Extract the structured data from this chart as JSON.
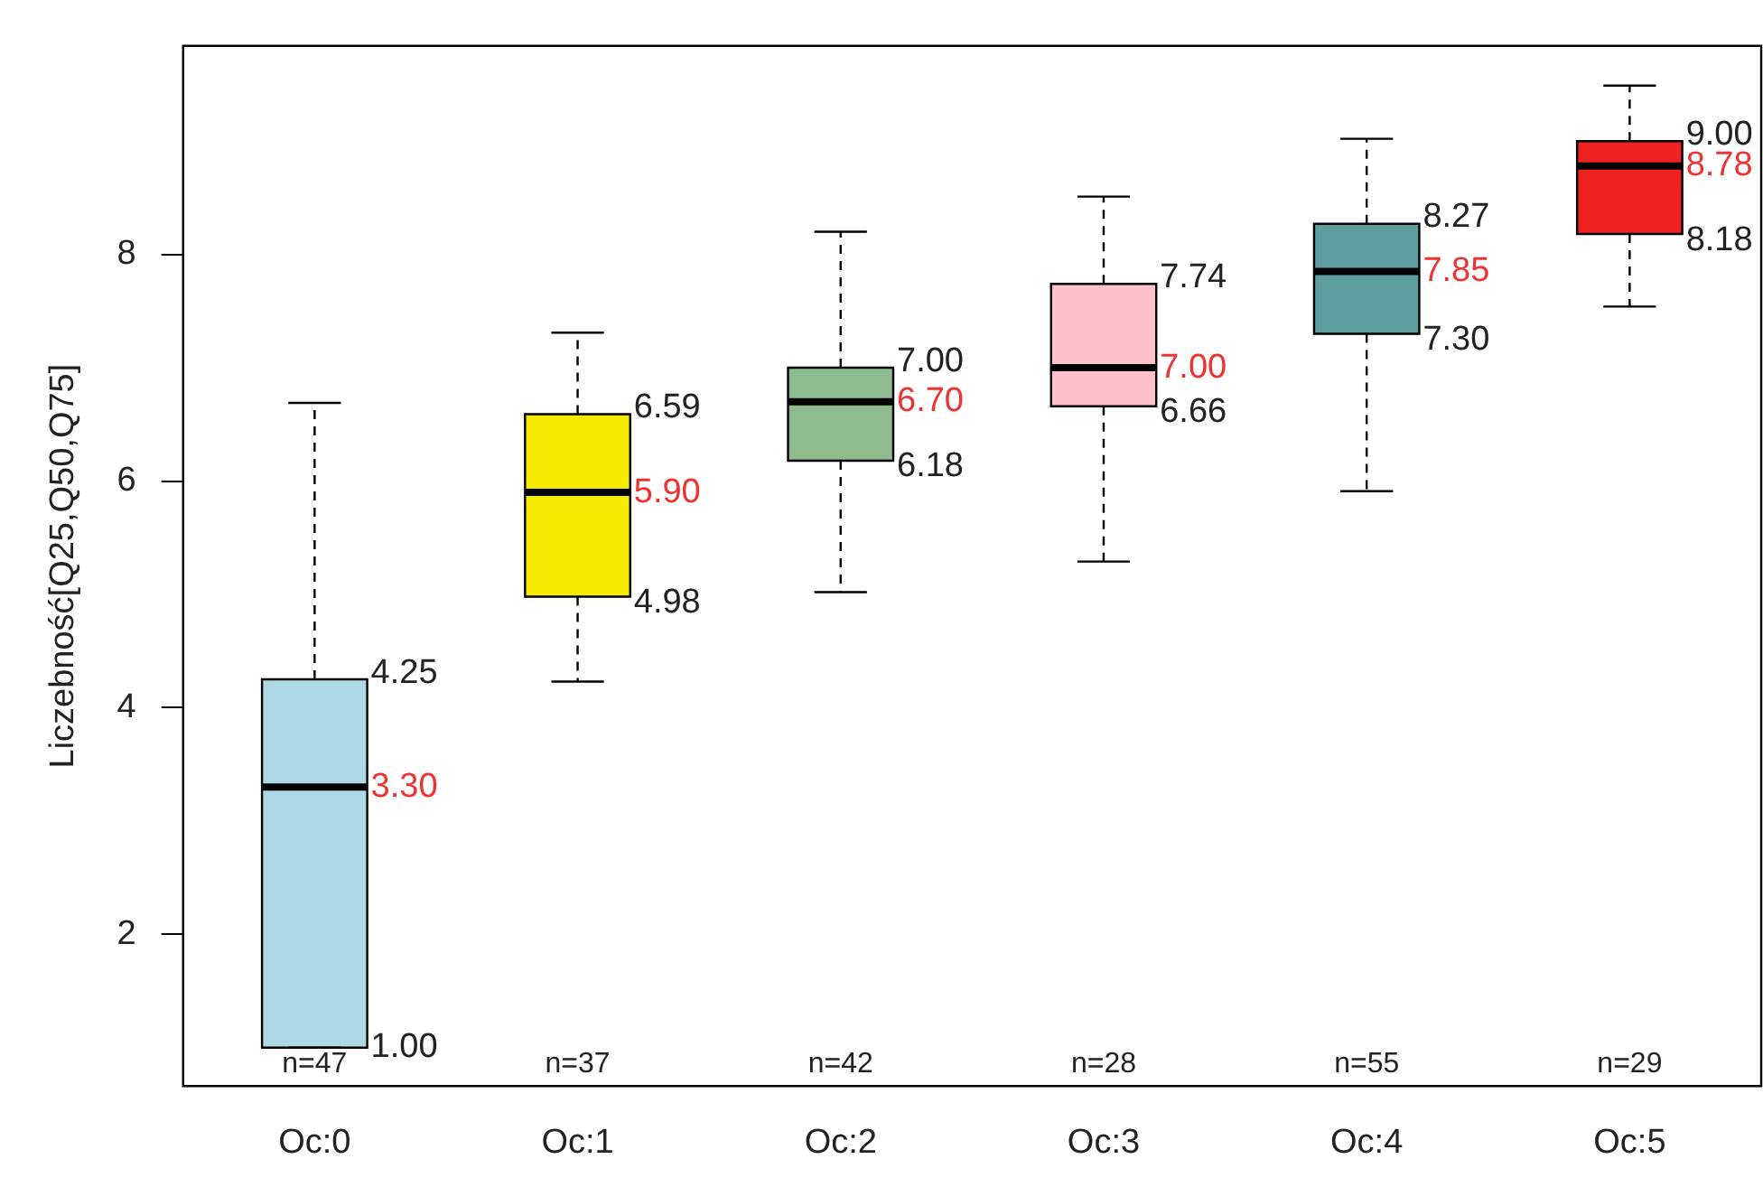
{
  "chart_data": {
    "type": "box",
    "ylabel": "Liczebność[Q25,Q50,Q75]",
    "categories": [
      "Oc:0",
      "Oc:1",
      "Oc:2",
      "Oc:3",
      "Oc:4",
      "Oc:5"
    ],
    "colors": [
      "#add8e6",
      "#f5ea00",
      "#8fbc8f",
      "#ffc0cb",
      "#5f9ea0",
      "#ee2222"
    ],
    "boxes": [
      {
        "low": 1.0,
        "q1": 1.0,
        "median": 3.3,
        "q3": 4.25,
        "high": 6.69
      },
      {
        "low": 4.23,
        "q1": 4.98,
        "median": 5.9,
        "q3": 6.59,
        "high": 7.31
      },
      {
        "low": 5.02,
        "q1": 6.18,
        "median": 6.7,
        "q3": 7.0,
        "high": 8.2
      },
      {
        "low": 5.29,
        "q1": 6.66,
        "median": 7.0,
        "q3": 7.74,
        "high": 8.51
      },
      {
        "low": 5.91,
        "q1": 7.3,
        "median": 7.85,
        "q3": 8.27,
        "high": 9.02
      },
      {
        "low": 7.54,
        "q1": 8.18,
        "median": 8.78,
        "q3": 9.0,
        "high": 9.49
      }
    ],
    "ylim": [
      0.66,
      9.84
    ],
    "yticks": [
      2,
      4,
      6,
      8
    ],
    "grid": false,
    "legend": false,
    "annotations": [
      {
        "text": "4.25",
        "x": "Oc:0",
        "y": 4.25
      },
      {
        "text": "3.30",
        "x": "Oc:0",
        "y": 3.3
      },
      {
        "text": "1.00",
        "x": "Oc:0",
        "y": 1.0
      },
      {
        "text": "6.59",
        "x": "Oc:1",
        "y": 6.59
      },
      {
        "text": "5.90",
        "x": "Oc:1",
        "y": 5.9
      },
      {
        "text": "4.98",
        "x": "Oc:1",
        "y": 4.98
      },
      {
        "text": "7.00",
        "x": "Oc:2",
        "y": 7.0
      },
      {
        "text": "6.70",
        "x": "Oc:2",
        "y": 6.7
      },
      {
        "text": "6.18",
        "x": "Oc:2",
        "y": 6.18
      },
      {
        "text": "7.74",
        "x": "Oc:3",
        "y": 7.74
      },
      {
        "text": "7.00",
        "x": "Oc:3",
        "y": 7.0
      },
      {
        "text": "6.66",
        "x": "Oc:3",
        "y": 6.66
      },
      {
        "text": "8.27",
        "x": "Oc:4",
        "y": 8.27
      },
      {
        "text": "7.85",
        "x": "Oc:4",
        "y": 7.85
      },
      {
        "text": "7.30",
        "x": "Oc:4",
        "y": 7.3
      },
      {
        "text": "9.00",
        "x": "Oc:5",
        "y": 9.0
      },
      {
        "text": "8.78",
        "x": "Oc:5",
        "y": 8.78
      },
      {
        "text": "8.18",
        "x": "Oc:5",
        "y": 8.18
      },
      "n=47",
      "n=37",
      "n=42",
      "n=28",
      "n=55",
      "n=29"
    ]
  }
}
